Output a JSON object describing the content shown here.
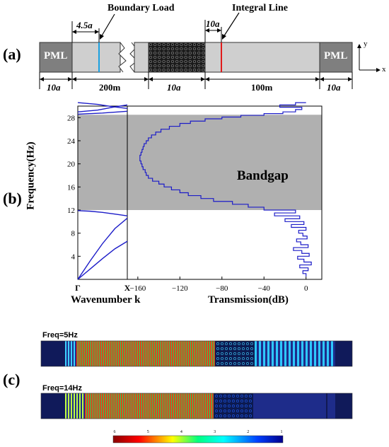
{
  "panel_a": {
    "label": "(a)",
    "annotations": {
      "boundary_load": "Boundary Load",
      "integral_line": "Integral Line",
      "offset_left": "4.5a",
      "offset_right": "10a"
    },
    "blocks": [
      "PML",
      "PML"
    ],
    "dimensions": [
      "10a",
      "200m",
      "10a",
      "100m",
      "10a"
    ],
    "axes": {
      "x": "x",
      "y": "y"
    },
    "colors": {
      "pml": "#7f7f7f",
      "waveguide": "#cfcfcf",
      "boundary_load": "#1aa0e0",
      "integral_line": "#e01a1a",
      "metamaterial": "#1a1a1a"
    }
  },
  "panel_b": {
    "label": "(b)",
    "bandgap_label": "Bandgap",
    "colors": {
      "bandgap": "#b0b0b0",
      "curve": "#1c1cc8"
    }
  },
  "chart_data": [
    {
      "type": "line",
      "title": "",
      "xlabel": "Wavenumber k",
      "ylabel": "Frequency(Hz)",
      "x_tick_labels": [
        "Γ",
        "X"
      ],
      "ylim": [
        0,
        30
      ],
      "y_ticks": [
        4,
        8,
        12,
        16,
        20,
        24,
        28
      ],
      "bandgap": [
        12,
        28.5
      ],
      "series": [
        {
          "values": [
            [
              0,
              0
            ],
            [
              0.25,
              3.2
            ],
            [
              0.5,
              6.2
            ],
            [
              0.75,
              8.8
            ],
            [
              1,
              10.6
            ]
          ]
        },
        {
          "values": [
            [
              0,
              0
            ],
            [
              0.25,
              1.8
            ],
            [
              0.5,
              3.6
            ],
            [
              0.75,
              5.3
            ],
            [
              1,
              6.6
            ]
          ]
        },
        {
          "values": [
            [
              0,
              11.9
            ],
            [
              0.25,
              11.8
            ],
            [
              0.5,
              11.6
            ],
            [
              0.75,
              11.3
            ],
            [
              1,
              11.0
            ]
          ]
        },
        {
          "values": [
            [
              0,
              29.0
            ],
            [
              0.4,
              29.3
            ],
            [
              0.7,
              29.8
            ],
            [
              1,
              30.2
            ]
          ]
        },
        {
          "values": [
            [
              0,
              30.6
            ],
            [
              0.4,
              30.3
            ],
            [
              0.7,
              29.9
            ],
            [
              1,
              29.6
            ]
          ]
        },
        {
          "values": [
            [
              0,
              28.6
            ],
            [
              0.5,
              28.8
            ],
            [
              1,
              29.1
            ]
          ]
        }
      ]
    },
    {
      "type": "line",
      "title": "",
      "xlabel": "Transmission(dB)",
      "ylabel": "",
      "xlim": [
        -170,
        15
      ],
      "ylim": [
        0,
        30
      ],
      "x_ticks": [
        -160,
        -120,
        -80,
        -40,
        0
      ],
      "bandgap": [
        12,
        28.5
      ],
      "series": [
        {
          "x": [
            0,
            -3,
            2,
            -6,
            5,
            -2,
            -8,
            3,
            -4,
            -12,
            2,
            -5,
            -9,
            1,
            -3,
            -7,
            0,
            -14,
            -2,
            -20,
            -6,
            -30,
            -10,
            -40,
            -55,
            -70,
            -88,
            -100,
            -112,
            -120,
            -128,
            -135,
            -140,
            -146,
            -150,
            -152,
            -153,
            -155,
            -156,
            -157,
            -158,
            -158,
            -157,
            -156,
            -155,
            -154,
            -152,
            -150,
            -147,
            -143,
            -138,
            -130,
            -120,
            -110,
            -96,
            -80,
            -62,
            -40,
            -22,
            -10,
            -4,
            -25,
            -10,
            0
          ],
          "y": [
            0.5,
            1.0,
            1.5,
            2.0,
            2.5,
            3.0,
            3.5,
            4.0,
            4.5,
            5.0,
            5.5,
            6.0,
            6.5,
            7.0,
            7.5,
            8.0,
            8.5,
            9.0,
            9.5,
            10.0,
            10.5,
            11.0,
            11.5,
            12.0,
            12.5,
            13.0,
            13.5,
            14.0,
            14.5,
            15.0,
            15.5,
            16.0,
            16.5,
            17.0,
            17.5,
            18.0,
            18.5,
            19.0,
            19.5,
            20.0,
            20.5,
            21.0,
            21.5,
            22.0,
            22.5,
            23.0,
            23.5,
            24.0,
            24.5,
            25.0,
            25.5,
            26.0,
            26.5,
            27.0,
            27.4,
            27.8,
            28.1,
            28.4,
            28.7,
            29.0,
            29.4,
            29.8,
            30.2,
            30.6
          ]
        }
      ]
    }
  ],
  "panel_c": {
    "label": "(c)",
    "fields": [
      {
        "title": "Freq=5Hz"
      },
      {
        "title": "Freq=14Hz"
      }
    ],
    "colorbar_ticks": [
      "6",
      "5",
      "4",
      "3",
      "2",
      "1"
    ]
  }
}
